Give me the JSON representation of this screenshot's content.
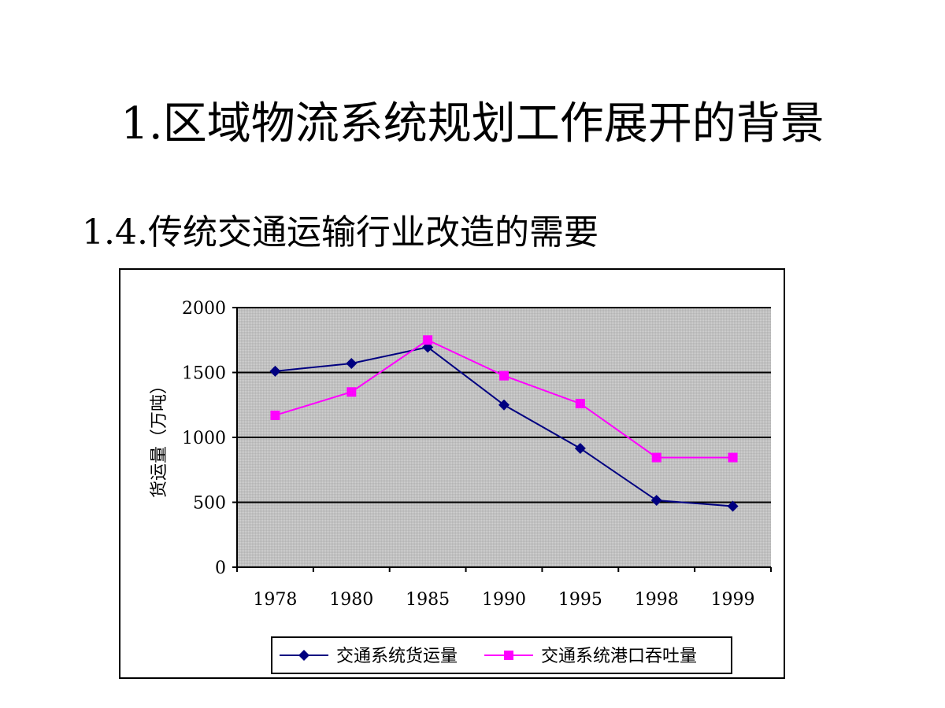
{
  "slide": {
    "title": "1.区域物流系统规划工作展开的背景",
    "subtitle": "1.4.传统交通运输行业改造的需要"
  },
  "chart_data": {
    "type": "line",
    "title": "",
    "xlabel": "",
    "ylabel": "货运量（万吨）",
    "categories": [
      "1978",
      "1980",
      "1985",
      "1990",
      "1995",
      "1998",
      "1999"
    ],
    "ylim": [
      0,
      2000
    ],
    "yticks": [
      "0",
      "500",
      "1000",
      "1500",
      "2000"
    ],
    "grid": true,
    "legend_position": "bottom",
    "plot_background": "#c0c0c0",
    "series": [
      {
        "name": "交通系统货运量",
        "color": "#000080",
        "marker": "diamond",
        "values": [
          1510,
          1570,
          1695,
          1250,
          915,
          515,
          470
        ]
      },
      {
        "name": "交通系统港口吞吐量",
        "color": "#ff00ff",
        "marker": "square",
        "values": [
          1170,
          1350,
          1750,
          1475,
          1260,
          845,
          845
        ]
      }
    ]
  }
}
